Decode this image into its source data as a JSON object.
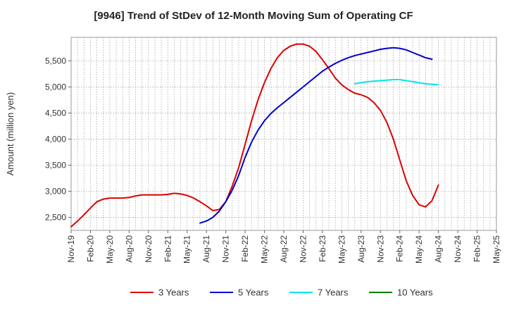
{
  "chart_data": {
    "type": "line",
    "title": "[9946]  Trend of StDev of 12-Month Moving Sum of Operating CF",
    "xlabel": "",
    "ylabel": "Amount (million yen)",
    "ylim": [
      2250,
      5950
    ],
    "yticks": [
      2500,
      3000,
      3500,
      4000,
      4500,
      5000,
      5500
    ],
    "ytick_labels": [
      "2,500",
      "3,000",
      "3,500",
      "4,000",
      "4,500",
      "5,000",
      "5,500"
    ],
    "x_range": [
      "Nov-19",
      "May-25"
    ],
    "x_tick_labels": [
      "Nov-19",
      "Feb-20",
      "May-20",
      "Aug-20",
      "Nov-20",
      "Feb-21",
      "May-21",
      "Aug-21",
      "Nov-21",
      "Feb-22",
      "May-22",
      "Aug-22",
      "Nov-22",
      "Feb-23",
      "May-23",
      "Aug-23",
      "Nov-23",
      "Feb-24",
      "May-24",
      "Aug-24",
      "Nov-24",
      "Feb-25",
      "May-25"
    ],
    "grid": true,
    "legend_position": "bottom",
    "series": [
      {
        "name": "3 Years",
        "color": "#dd0000",
        "start": "Nov-19",
        "values": [
          2320,
          2430,
          2550,
          2680,
          2800,
          2850,
          2870,
          2870,
          2870,
          2880,
          2910,
          2930,
          2930,
          2930,
          2930,
          2940,
          2960,
          2950,
          2920,
          2870,
          2800,
          2720,
          2630,
          2650,
          2800,
          3100,
          3450,
          3900,
          4350,
          4750,
          5080,
          5350,
          5560,
          5700,
          5780,
          5820,
          5820,
          5780,
          5680,
          5520,
          5350,
          5170,
          5040,
          4950,
          4880,
          4850,
          4800,
          4700,
          4550,
          4320,
          4000,
          3600,
          3200,
          2920,
          2740,
          2700,
          2820,
          3120
        ]
      },
      {
        "name": "5 Years",
        "color": "#0000cc",
        "start": "Jul-21",
        "values": [
          2390,
          2430,
          2500,
          2620,
          2800,
          3020,
          3300,
          3650,
          3940,
          4170,
          4350,
          4490,
          4600,
          4700,
          4800,
          4900,
          5000,
          5100,
          5200,
          5300,
          5380,
          5450,
          5510,
          5560,
          5600,
          5630,
          5660,
          5690,
          5720,
          5740,
          5750,
          5740,
          5710,
          5660,
          5610,
          5560,
          5530
        ]
      },
      {
        "name": "7 Years",
        "color": "#00e5ee",
        "start": "Jul-23",
        "values": [
          5060,
          5080,
          5100,
          5110,
          5120,
          5130,
          5140,
          5140,
          5120,
          5100,
          5080,
          5060,
          5050,
          5040
        ]
      },
      {
        "name": "10 Years",
        "color": "#008000",
        "start": "Nov-19",
        "values": []
      }
    ]
  }
}
